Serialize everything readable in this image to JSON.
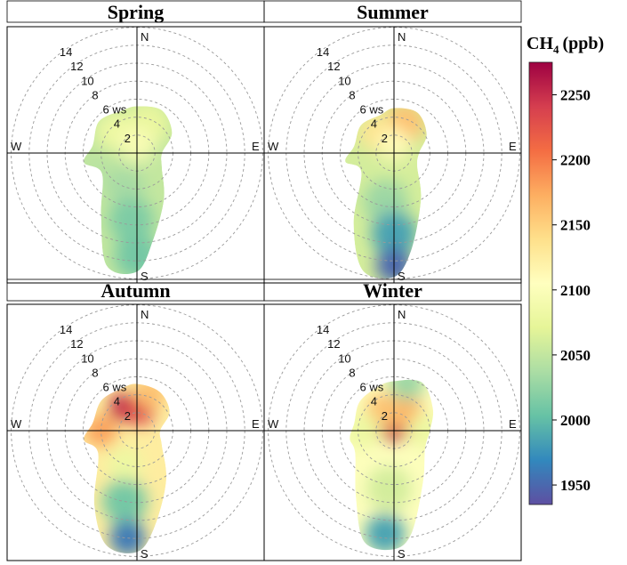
{
  "chart_data": {
    "type": "heatmap",
    "description_kind": "polar wind-rose concentration plots",
    "colorbar": {
      "title_main": "CH",
      "title_sub": "4",
      "title_unit": "(ppb)",
      "ticks": [
        "2250",
        "2200",
        "2150",
        "2100",
        "2050",
        "2000",
        "1950"
      ],
      "tick_values": [
        2250,
        2200,
        2150,
        2100,
        2050,
        2000,
        1950
      ],
      "range": [
        1935,
        2275
      ],
      "palette": [
        "#5e4fa2",
        "#3288bd",
        "#66c2a5",
        "#abdda4",
        "#e6f598",
        "#ffffbf",
        "#fee08b",
        "#fdae61",
        "#f46d43",
        "#d53e4f",
        "#9e0142"
      ]
    },
    "axis": {
      "ring_labels": [
        "2",
        "4",
        "6 ws",
        "8",
        "10",
        "12",
        "14"
      ],
      "ring_values": [
        2,
        4,
        6,
        8,
        10,
        12,
        14
      ],
      "directions": {
        "n": "N",
        "e": "E",
        "s": "S",
        "w": "W"
      }
    },
    "panels": [
      {
        "title": "Spring",
        "blobs": [
          {
            "dir": 315,
            "ws": 3.5,
            "spread": 2.2,
            "value": 2080
          },
          {
            "dir": 20,
            "ws": 3.5,
            "spread": 2.5,
            "value": 2075
          },
          {
            "dir": 0,
            "ws": 1.0,
            "spread": 2.0,
            "value": 2095
          },
          {
            "dir": 250,
            "ws": 4.5,
            "spread": 1.8,
            "value": 2045
          },
          {
            "dir": 200,
            "ws": 4.0,
            "spread": 2.2,
            "value": 2035
          },
          {
            "dir": 185,
            "ws": 7.5,
            "spread": 2.5,
            "value": 2015
          },
          {
            "dir": 180,
            "ws": 11.5,
            "spread": 2.5,
            "value": 2010
          }
        ],
        "envelope": [
          [
            0,
            5.2
          ],
          [
            30,
            5.5
          ],
          [
            60,
            4.5
          ],
          [
            90,
            2.8
          ],
          [
            120,
            3.2
          ],
          [
            150,
            6.0
          ],
          [
            170,
            10.0
          ],
          [
            180,
            13.2
          ],
          [
            195,
            13.0
          ],
          [
            210,
            8.0
          ],
          [
            240,
            4.5
          ],
          [
            260,
            6.0
          ],
          [
            280,
            5.0
          ],
          [
            310,
            5.5
          ],
          [
            340,
            5.0
          ]
        ]
      },
      {
        "title": "Summer",
        "blobs": [
          {
            "dir": 20,
            "ws": 3.5,
            "spread": 2.2,
            "value": 2160
          },
          {
            "dir": 320,
            "ws": 3.0,
            "spread": 2.0,
            "value": 2135
          },
          {
            "dir": 0,
            "ws": 1.0,
            "spread": 1.8,
            "value": 2110
          },
          {
            "dir": 250,
            "ws": 4.0,
            "spread": 1.8,
            "value": 2060
          },
          {
            "dir": 190,
            "ws": 5.5,
            "spread": 2.5,
            "value": 2030
          },
          {
            "dir": 180,
            "ws": 9.0,
            "spread": 2.5,
            "value": 1985
          },
          {
            "dir": 180,
            "ws": 12.5,
            "spread": 2.0,
            "value": 1950
          }
        ],
        "envelope": [
          [
            0,
            5.0
          ],
          [
            30,
            5.2
          ],
          [
            60,
            4.2
          ],
          [
            90,
            2.8
          ],
          [
            120,
            3.0
          ],
          [
            150,
            6.0
          ],
          [
            170,
            11.0
          ],
          [
            180,
            13.8
          ],
          [
            195,
            13.5
          ],
          [
            210,
            9.0
          ],
          [
            240,
            4.2
          ],
          [
            260,
            5.5
          ],
          [
            280,
            4.5
          ],
          [
            310,
            4.8
          ],
          [
            340,
            4.5
          ]
        ]
      },
      {
        "title": "Autumn",
        "blobs": [
          {
            "dir": 330,
            "ws": 3.0,
            "spread": 1.6,
            "value": 2255
          },
          {
            "dir": 10,
            "ws": 2.2,
            "spread": 1.6,
            "value": 2230
          },
          {
            "dir": 20,
            "ws": 4.5,
            "spread": 1.8,
            "value": 2160
          },
          {
            "dir": 270,
            "ws": 4.0,
            "spread": 1.8,
            "value": 2180
          },
          {
            "dir": 200,
            "ws": 4.0,
            "spread": 2.0,
            "value": 2080
          },
          {
            "dir": 190,
            "ws": 8.0,
            "spread": 2.5,
            "value": 2010
          },
          {
            "dir": 185,
            "ws": 12.0,
            "spread": 2.0,
            "value": 1960
          }
        ],
        "envelope": [
          [
            0,
            5.2
          ],
          [
            30,
            5.0
          ],
          [
            60,
            4.2
          ],
          [
            90,
            2.6
          ],
          [
            120,
            3.2
          ],
          [
            150,
            6.5
          ],
          [
            170,
            11.0
          ],
          [
            180,
            13.5
          ],
          [
            195,
            13.2
          ],
          [
            210,
            9.5
          ],
          [
            240,
            5.0
          ],
          [
            260,
            6.0
          ],
          [
            280,
            5.0
          ],
          [
            310,
            5.2
          ],
          [
            340,
            5.0
          ]
        ]
      },
      {
        "title": "Winter",
        "blobs": [
          {
            "dir": 0,
            "ws": 0.6,
            "spread": 1.8,
            "value": 2255
          },
          {
            "dir": 30,
            "ws": 2.5,
            "spread": 2.0,
            "value": 2170
          },
          {
            "dir": 330,
            "ws": 2.5,
            "spread": 2.0,
            "value": 2160
          },
          {
            "dir": 90,
            "ws": 3.5,
            "spread": 2.0,
            "value": 2080
          },
          {
            "dir": 270,
            "ws": 3.5,
            "spread": 2.0,
            "value": 2080
          },
          {
            "dir": 15,
            "ws": 5.5,
            "spread": 2.0,
            "value": 2030
          },
          {
            "dir": 185,
            "ws": 6.5,
            "spread": 2.5,
            "value": 2060
          },
          {
            "dir": 185,
            "ws": 11.5,
            "spread": 2.2,
            "value": 1985
          }
        ],
        "envelope": [
          [
            0,
            5.5
          ],
          [
            30,
            6.2
          ],
          [
            60,
            5.0
          ],
          [
            90,
            4.0
          ],
          [
            120,
            4.0
          ],
          [
            150,
            6.5
          ],
          [
            170,
            11.5
          ],
          [
            180,
            13.2
          ],
          [
            195,
            12.8
          ],
          [
            210,
            8.5
          ],
          [
            240,
            5.0
          ],
          [
            260,
            5.0
          ],
          [
            280,
            4.5
          ],
          [
            310,
            5.0
          ],
          [
            340,
            5.2
          ]
        ]
      }
    ]
  }
}
